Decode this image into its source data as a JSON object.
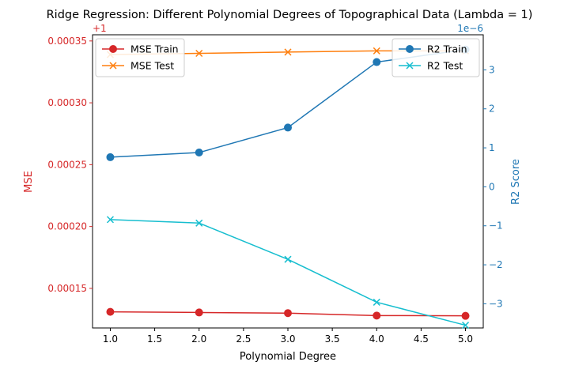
{
  "chart_data": {
    "type": "line",
    "title": "Ridge Regression: Different Polynomial Degrees of Topographical Data (Lambda = 1)",
    "xlabel": "Polynomial Degree",
    "x": [
      1,
      2,
      3,
      4,
      5
    ],
    "xlim": [
      0.8,
      5.2
    ],
    "xticks": [
      "1.0",
      "1.5",
      "2.0",
      "2.5",
      "3.0",
      "3.5",
      "4.0",
      "4.5",
      "5.0"
    ],
    "left_axis": {
      "label": "MSE",
      "color": "#d62728",
      "offset_label": "+1",
      "ylim": [
        0.000118,
        0.000355
      ],
      "ticks": [
        "0.00015",
        "0.00020",
        "0.00025",
        "0.00030",
        "0.00035"
      ],
      "legend_position": "upper-left",
      "series": [
        {
          "name": "MSE Train",
          "color": "#d62728",
          "marker": "circle",
          "values": [
            0.000131,
            0.0001305,
            0.00013,
            0.000128,
            0.0001278
          ]
        },
        {
          "name": "MSE Test",
          "color": "#ff7f0e",
          "marker": "x",
          "values": [
            0.000339,
            0.00034,
            0.000341,
            0.000342,
            0.000342
          ]
        }
      ]
    },
    "right_axis": {
      "label": "R2 Score",
      "color": "#1f77b4",
      "offset_label": "1e−6",
      "ylim": [
        -3.62,
        3.9
      ],
      "ticks": [
        "−3",
        "−2",
        "−1",
        "0",
        "1",
        "2",
        "3"
      ],
      "legend_position": "upper-right",
      "series": [
        {
          "name": "R2 Train",
          "color": "#1f77b4",
          "marker": "circle",
          "values": [
            0.76,
            0.88,
            1.52,
            3.2,
            3.52
          ]
        },
        {
          "name": "R2 Test",
          "color": "#17becf",
          "marker": "x",
          "values": [
            -0.84,
            -0.93,
            -1.86,
            -2.96,
            -3.55
          ]
        }
      ]
    }
  }
}
